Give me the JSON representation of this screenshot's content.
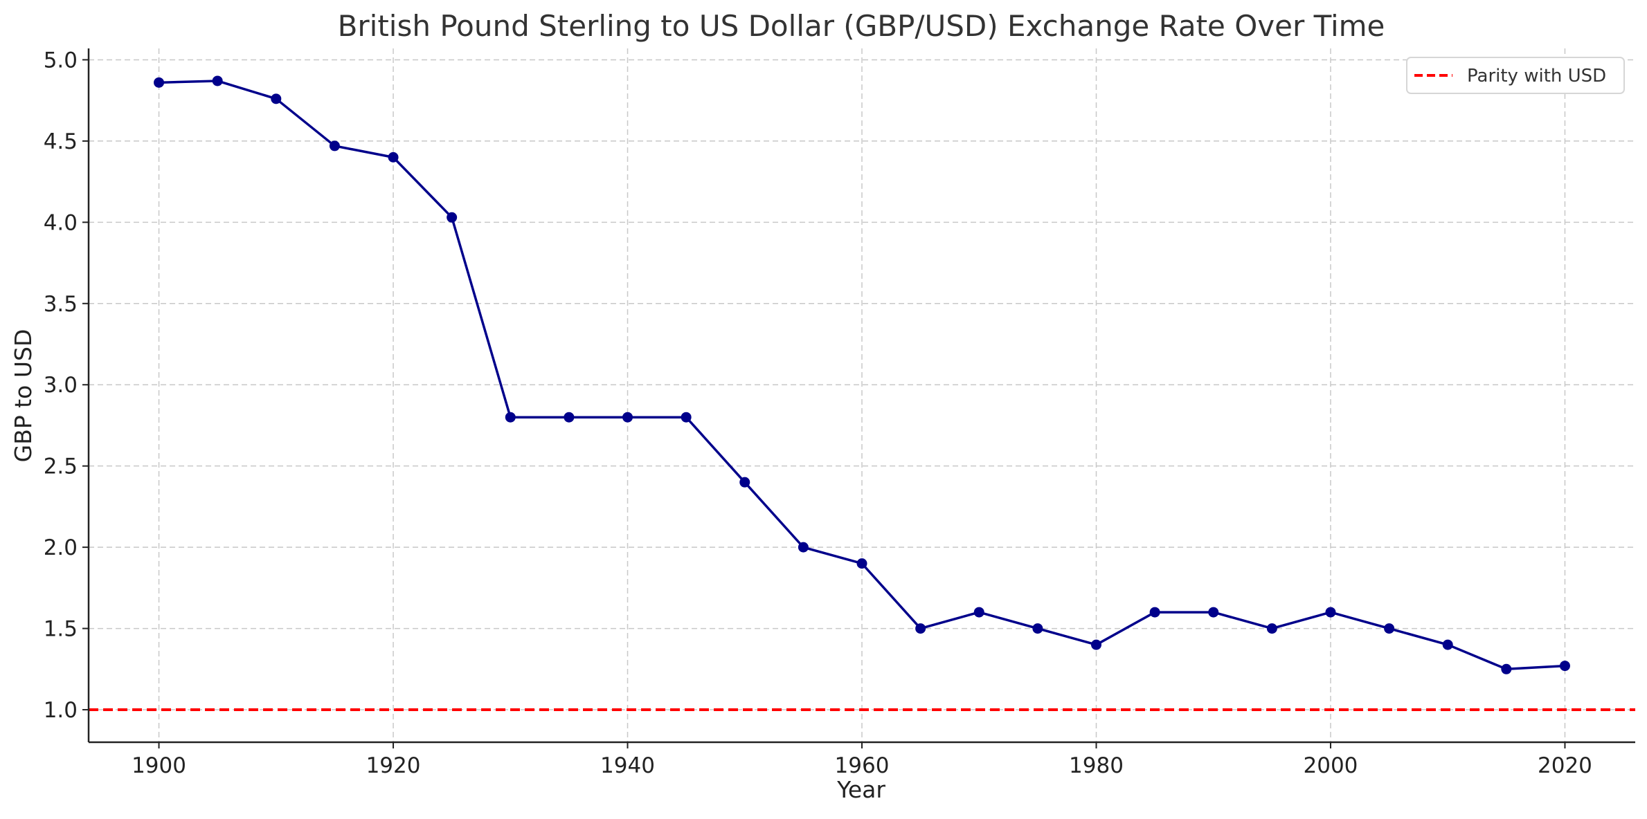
{
  "chart_data": {
    "type": "line",
    "title": "British Pound Sterling to US Dollar (GBP/USD) Exchange Rate Over Time",
    "xlabel": "Year",
    "ylabel": "GBP to USD",
    "xlim": [
      1894,
      2026
    ],
    "ylim": [
      0.8,
      5.07
    ],
    "xticks": [
      1900,
      1920,
      1940,
      1960,
      1980,
      2000,
      2020
    ],
    "yticks": [
      1.0,
      1.5,
      2.0,
      2.5,
      3.0,
      3.5,
      4.0,
      4.5,
      5.0
    ],
    "ytick_labels": [
      "1.0",
      "1.5",
      "2.0",
      "2.5",
      "3.0",
      "3.5",
      "4.0",
      "4.5",
      "5.0"
    ],
    "grid": true,
    "x": [
      1900,
      1905,
      1910,
      1915,
      1920,
      1925,
      1930,
      1935,
      1940,
      1945,
      1950,
      1955,
      1960,
      1965,
      1970,
      1975,
      1980,
      1985,
      1990,
      1995,
      2000,
      2005,
      2010,
      2015,
      2020
    ],
    "series": [
      {
        "values": [
          4.86,
          4.87,
          4.76,
          4.47,
          4.4,
          4.03,
          2.8,
          2.8,
          2.8,
          2.8,
          2.4,
          2.0,
          1.9,
          1.5,
          1.6,
          1.5,
          1.4,
          1.6,
          1.6,
          1.5,
          1.6,
          1.5,
          1.4,
          1.25,
          1.27
        ],
        "color": "#00008b",
        "marker": "circle"
      }
    ],
    "reference_line": {
      "name": "Parity with USD",
      "y": 1.0,
      "color": "#ff0000",
      "style": "dashed"
    },
    "legend": {
      "placement": "top-right",
      "entries": [
        "Parity with USD"
      ]
    }
  }
}
